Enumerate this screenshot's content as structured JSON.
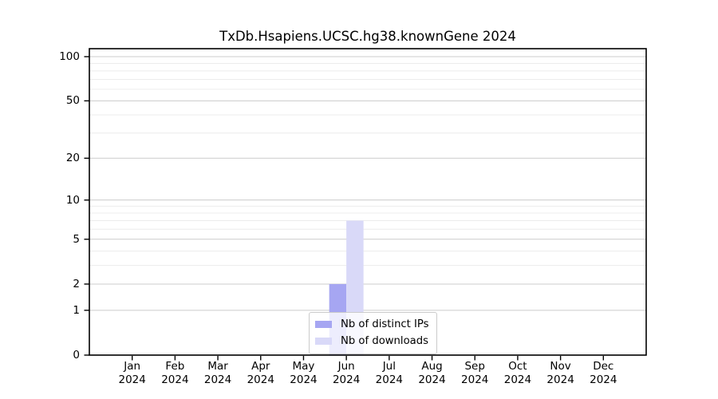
{
  "chart_data": {
    "type": "bar",
    "title": "TxDb.Hsapiens.UCSC.hg38.knownGene 2024",
    "categories": [
      "Jan",
      "Feb",
      "Mar",
      "Apr",
      "May",
      "Jun",
      "Jul",
      "Aug",
      "Sep",
      "Oct",
      "Nov",
      "Dec"
    ],
    "x_tick_second_line": "2024",
    "series": [
      {
        "name": "Nb of distinct IPs",
        "color": "#a6a6f2",
        "values": [
          0,
          0,
          0,
          0,
          0,
          2,
          0,
          0,
          0,
          0,
          0,
          0
        ]
      },
      {
        "name": "Nb of downloads",
        "color": "#d9d9f8",
        "values": [
          0,
          0,
          0,
          0,
          0,
          7,
          0,
          0,
          0,
          0,
          0,
          0
        ]
      }
    ],
    "y_axis": {
      "scale": "log1p",
      "major_ticks": [
        0,
        1,
        2,
        5,
        10,
        20,
        50,
        100
      ],
      "minor_gridlines": [
        3,
        4,
        6,
        7,
        8,
        9,
        30,
        40,
        60,
        70,
        80,
        90
      ],
      "range": [
        0,
        113
      ]
    },
    "legend": {
      "position": "bottom-center",
      "entries": [
        "Nb of distinct IPs",
        "Nb of downloads"
      ]
    },
    "grid": true,
    "colors": {
      "background": "#ffffff",
      "major_grid": "#cccccc",
      "minor_grid": "#ececec",
      "axis": "#000000"
    }
  }
}
